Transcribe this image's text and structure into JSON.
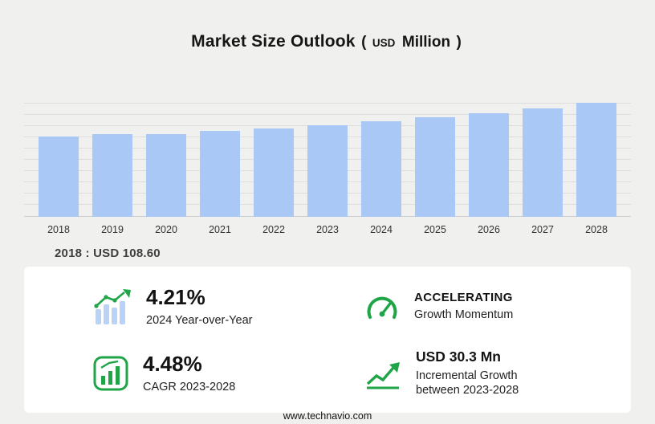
{
  "title": {
    "main": "Market Size Outlook",
    "paren_open": "(",
    "unit_small": "USD",
    "unit_big": "Million",
    "paren_close": ")"
  },
  "chart_data": {
    "type": "bar",
    "title": "Market Size Outlook (USD Million)",
    "categories": [
      "2018",
      "2019",
      "2020",
      "2021",
      "2022",
      "2023",
      "2024",
      "2025",
      "2026",
      "2027",
      "2028"
    ],
    "values": [
      108.6,
      111.9,
      111.5,
      115.8,
      119.3,
      123.8,
      129.0,
      134.4,
      140.5,
      147.0,
      154.1
    ],
    "xlabel": "",
    "ylabel": "",
    "ylim": [
      0,
      160
    ],
    "grid": true,
    "legend": false,
    "labeled_points": {
      "2018": "USD 108.60"
    }
  },
  "annotation": {
    "text": "2018 : USD 108.60"
  },
  "stats": [
    {
      "icon": "bar-chart-trend-icon",
      "value": "4.21%",
      "label": "2024 Year-over-Year"
    },
    {
      "icon": "speedometer-icon",
      "value": "ACCELERATING",
      "label": "Growth Momentum"
    },
    {
      "icon": "boxed-bar-chart-icon",
      "value": "4.48%",
      "label": "CAGR 2023-2028"
    },
    {
      "icon": "growth-arrow-icon",
      "value": "USD 30.3 Mn",
      "label": "Incremental Growth between 2023-2028"
    }
  ],
  "footer": {
    "url": "www.technavio.com"
  },
  "colors": {
    "background": "#f0f0ee",
    "bar": "#a9c8f5",
    "accent_green": "#1fa548",
    "panel": "#ffffff"
  }
}
